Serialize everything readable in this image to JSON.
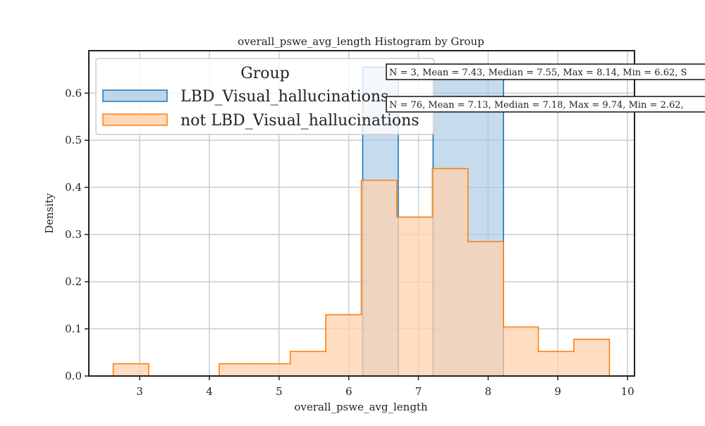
{
  "chart_data": {
    "type": "histogram",
    "title": "overall_pswe_avg_length Histogram by Group",
    "xlabel": "overall_pswe_avg_length",
    "ylabel": "Density",
    "xlim": [
      2.27,
      10.1
    ],
    "ylim": [
      0,
      0.69
    ],
    "xticks": [
      3,
      4,
      5,
      6,
      7,
      8,
      9,
      10
    ],
    "yticks": [
      0.0,
      0.1,
      0.2,
      0.3,
      0.4,
      0.5,
      0.6
    ],
    "ytick_labels": [
      "0.0",
      "0.1",
      "0.2",
      "0.3",
      "0.4",
      "0.5",
      "0.6"
    ],
    "grid": true,
    "legend": {
      "title": "Group",
      "placement": "top-left"
    },
    "series": [
      {
        "name": "LBD_Visual_hallucinations",
        "color": "#1f77b4",
        "fill": "#a8c8e3",
        "bins": [
          {
            "x0": 6.2,
            "x1": 6.71,
            "density": 0.655
          },
          {
            "x0": 6.71,
            "x1": 7.21,
            "density": 0.0
          },
          {
            "x0": 7.21,
            "x1": 7.72,
            "density": 0.655
          },
          {
            "x0": 7.72,
            "x1": 8.22,
            "density": 0.655
          }
        ]
      },
      {
        "name": "not LBD_Visual_hallucinations",
        "color": "#ff7f0e",
        "fill": "#ffd2ad",
        "bins": [
          {
            "x0": 2.62,
            "x1": 3.13,
            "density": 0.026
          },
          {
            "x0": 3.13,
            "x1": 3.64,
            "density": 0.0
          },
          {
            "x0": 3.64,
            "x1": 4.14,
            "density": 0.0
          },
          {
            "x0": 4.14,
            "x1": 4.65,
            "density": 0.026
          },
          {
            "x0": 4.65,
            "x1": 5.16,
            "density": 0.026
          },
          {
            "x0": 5.16,
            "x1": 5.67,
            "density": 0.052
          },
          {
            "x0": 5.67,
            "x1": 6.18,
            "density": 0.13
          },
          {
            "x0": 6.18,
            "x1": 6.69,
            "density": 0.415
          },
          {
            "x0": 6.69,
            "x1": 7.2,
            "density": 0.337
          },
          {
            "x0": 7.2,
            "x1": 7.71,
            "density": 0.44
          },
          {
            "x0": 7.71,
            "x1": 8.22,
            "density": 0.285
          },
          {
            "x0": 8.22,
            "x1": 8.72,
            "density": 0.104
          },
          {
            "x0": 8.72,
            "x1": 9.23,
            "density": 0.052
          },
          {
            "x0": 9.23,
            "x1": 9.74,
            "density": 0.078
          }
        ]
      }
    ],
    "annotations": [
      {
        "text": "N = 3, Mean = 7.43, Median = 7.55, Max = 8.14, Min = 6.62, S"
      },
      {
        "text": "N = 76, Mean = 7.13, Median = 7.18, Max = 9.74, Min = 2.62,"
      }
    ]
  }
}
